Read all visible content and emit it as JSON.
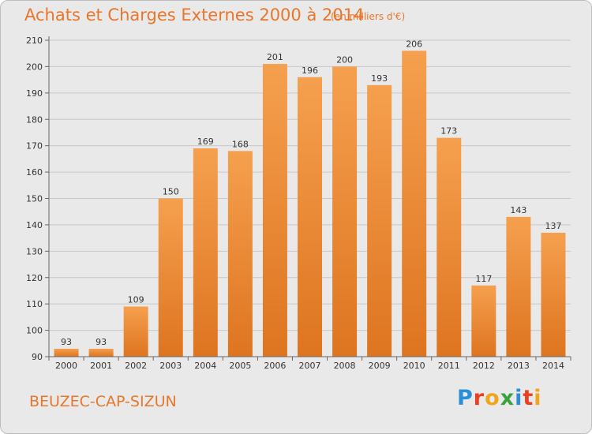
{
  "header": {
    "title": "Achats et Charges Externes 2000 à 2014",
    "unit": "(en milliers d'€)"
  },
  "footer": {
    "location": "BEUZEC-CAP-SIZUN",
    "brand_letters": [
      {
        "char": "P",
        "color": "#2a8fd6"
      },
      {
        "char": "r",
        "color": "#e8411f"
      },
      {
        "char": "o",
        "color": "#f1a51c"
      },
      {
        "char": "x",
        "color": "#3aa23a"
      },
      {
        "char": "i",
        "color": "#2a8fd6"
      },
      {
        "char": "t",
        "color": "#e8411f"
      },
      {
        "char": "i",
        "color": "#f1a51c"
      }
    ]
  },
  "colors": {
    "bar_light": "#f5a04e",
    "bar_dark": "#de7420",
    "grid": "#c8c8c8",
    "axis": "#666666",
    "text_accent": "#e8762b"
  },
  "chart_data": {
    "type": "bar",
    "title": "Achats et Charges Externes 2000 à 2014",
    "subtitle": "(en milliers d'€)",
    "xlabel": "",
    "ylabel": "",
    "categories": [
      "2000",
      "2001",
      "2002",
      "2003",
      "2004",
      "2005",
      "2006",
      "2007",
      "2008",
      "2009",
      "2010",
      "2011",
      "2012",
      "2013",
      "2014"
    ],
    "values": [
      93,
      93,
      109,
      150,
      169,
      168,
      201,
      196,
      200,
      193,
      206,
      173,
      117,
      143,
      137
    ],
    "ylim": [
      90,
      210
    ],
    "yticks": [
      90,
      100,
      110,
      120,
      130,
      140,
      150,
      160,
      170,
      180,
      190,
      200,
      210
    ],
    "grid": true,
    "grid_axis": "y",
    "legend": "none"
  }
}
